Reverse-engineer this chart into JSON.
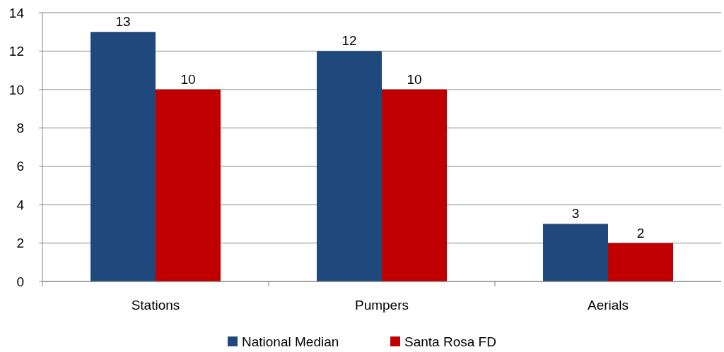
{
  "chart_data": {
    "type": "bar",
    "categories": [
      "Stations",
      "Pumpers",
      "Aerials"
    ],
    "series": [
      {
        "name": "National Median",
        "color": "#1f497d",
        "values": [
          13,
          12,
          3
        ]
      },
      {
        "name": "Santa Rosa FD",
        "color": "#c00000",
        "values": [
          10,
          10,
          2
        ]
      }
    ],
    "ylim": [
      0,
      14
    ],
    "yticks": [
      0,
      2,
      4,
      6,
      8,
      10,
      12,
      14
    ],
    "grid": "y",
    "legend": "bottom",
    "data_labels": true
  }
}
